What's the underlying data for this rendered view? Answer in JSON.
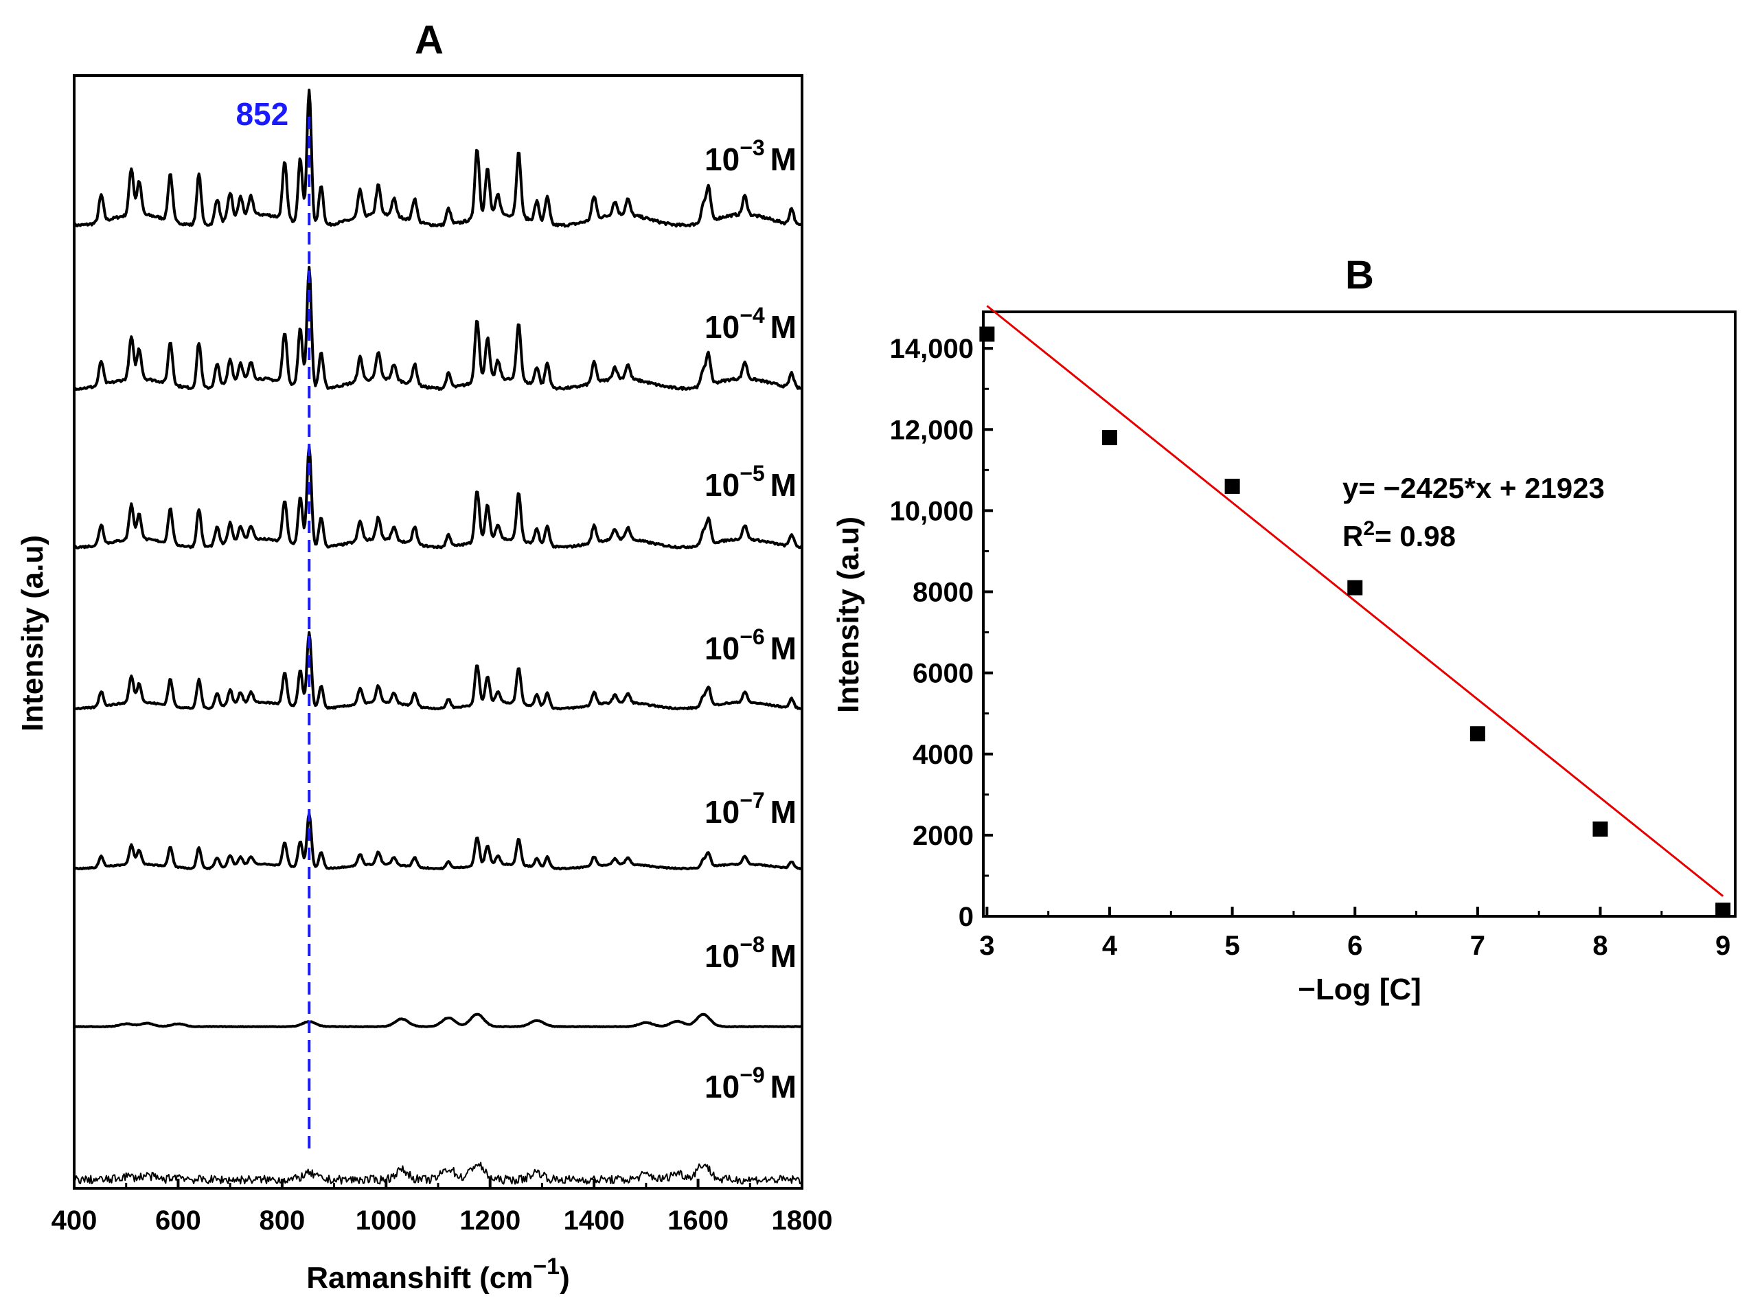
{
  "chart_data": [
    {
      "id": "A",
      "type": "line",
      "title": "A",
      "xlabel": "Ramanshift (cm",
      "xlabel_sup": "−1",
      "xlabel_tail": ")",
      "ylabel": "Intensity (a.u)",
      "xlim": [
        400,
        1800
      ],
      "xticks": [
        400,
        600,
        800,
        1000,
        1200,
        1400,
        1600,
        1800
      ],
      "peak_marker": {
        "x": 852,
        "label": "852",
        "color": "#1a1aff"
      },
      "peak_positions": [
        452,
        510,
        525,
        585,
        640,
        675,
        700,
        720,
        740,
        805,
        835,
        852,
        875,
        950,
        985,
        1015,
        1055,
        1120,
        1175,
        1195,
        1215,
        1255,
        1290,
        1310,
        1400,
        1440,
        1465,
        1610,
        1620,
        1690,
        1780
      ],
      "series": [
        {
          "name": "1e-3",
          "base": "10",
          "exp": "−3",
          "unit": "M",
          "peak852": 1.0,
          "noise": 0.0
        },
        {
          "name": "1e-4",
          "base": "10",
          "exp": "−4",
          "unit": "M",
          "peak852": 0.9,
          "noise": 0.0
        },
        {
          "name": "1e-5",
          "base": "10",
          "exp": "−5",
          "unit": "M",
          "peak852": 0.72,
          "noise": 0.0
        },
        {
          "name": "1e-6",
          "base": "10",
          "exp": "−6",
          "unit": "M",
          "peak852": 0.55,
          "noise": 0.0
        },
        {
          "name": "1e-7",
          "base": "10",
          "exp": "−7",
          "unit": "M",
          "peak852": 0.42,
          "noise": 0.0
        },
        {
          "name": "1e-8",
          "base": "10",
          "exp": "−8",
          "unit": "M",
          "peak852": 0.1,
          "noise": 0.0
        },
        {
          "name": "1e-9",
          "base": "10",
          "exp": "−9",
          "unit": "M",
          "peak852": 0.12,
          "noise": 1.0
        }
      ]
    },
    {
      "id": "B",
      "type": "scatter",
      "title": "B",
      "xlabel": "−Log [C]",
      "ylabel": "Intensity (a.u)",
      "xlim": [
        2.97,
        9.1
      ],
      "ylim": [
        0,
        14900
      ],
      "xticks": [
        3,
        4,
        5,
        6,
        7,
        8,
        9
      ],
      "yticks": [
        0,
        2000,
        4000,
        6000,
        8000,
        10000,
        12000,
        14000
      ],
      "ytick_labels": [
        "0",
        "2000",
        "4000",
        "6000",
        "8000",
        "10,000",
        "12,000",
        "14,000"
      ],
      "x": [
        3,
        4,
        5,
        6,
        7,
        8,
        9
      ],
      "y": [
        14350,
        11800,
        10600,
        8100,
        4500,
        2150,
        150
      ],
      "fit": {
        "slope": -2425,
        "intercept": 21923,
        "x_range": [
          3,
          9
        ],
        "color": "#e60000"
      },
      "equation": "y= −2425*x + 21923",
      "r2_prefix": "R",
      "r2_sup": "2",
      "r2_value": "= 0.98"
    }
  ]
}
